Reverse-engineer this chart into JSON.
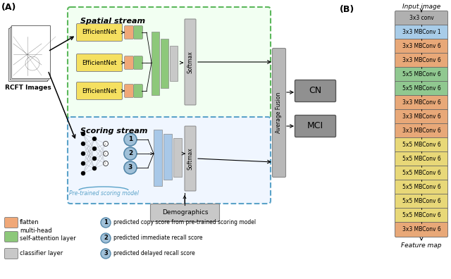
{
  "title_A": "(A)",
  "title_B": "(B)",
  "spatial_stream_label": "Spatial stream",
  "scoring_stream_label": "Scoring stream",
  "rcft_label": "RCFT Images",
  "pretrained_label": "Pre-trained scoring model",
  "demographics_label": "Demographics",
  "avg_fusion_label": "Average Fusion",
  "softmax_label": "Softmax",
  "softmax2_label": "Softmax",
  "cn_label": "CN",
  "mci_label": "MCI",
  "input_image_label": "Input image",
  "feature_map_label": "Feature map",
  "efficientnet_color": "#f5e060",
  "flatten_color": "#f0a878",
  "attention_color": "#8dc87a",
  "classifier_color": "#c8c8c8",
  "blue_block_color": "#a8c8e8",
  "gray_block_color": "#b8b8b8",
  "light_blue_circle": "#a0c0d8",
  "spatial_box_edge": "#5cb85c",
  "scoring_box_edge": "#5ba3c9",
  "cn_mci_color": "#909090",
  "avg_fusion_color": "#b8b8b8",
  "b_blocks": [
    {
      "label": "3x3 conv",
      "color": "#b0b0b0"
    },
    {
      "label": "3x3 MBConv 1",
      "color": "#a8cce8"
    },
    {
      "label": "3x3 MBConv 6",
      "color": "#e8a878"
    },
    {
      "label": "3x3 MBConv 6",
      "color": "#e8a878"
    },
    {
      "label": "5x5 MBConv 6",
      "color": "#90c890"
    },
    {
      "label": "5x5 MBConv 6",
      "color": "#90c890"
    },
    {
      "label": "3x3 MBConv 6",
      "color": "#e8a878"
    },
    {
      "label": "3x3 MBConv 6",
      "color": "#e8a878"
    },
    {
      "label": "3x3 MBConv 6",
      "color": "#e8a878"
    },
    {
      "label": "5x5 MBConv 6",
      "color": "#e8d878"
    },
    {
      "label": "5x5 MBConv 6",
      "color": "#e8d878"
    },
    {
      "label": "5x5 MBConv 6",
      "color": "#e8d878"
    },
    {
      "label": "5x5 MBConv 6",
      "color": "#e8d878"
    },
    {
      "label": "5x5 MBConv 6",
      "color": "#e8d878"
    },
    {
      "label": "5x5 MBConv 6",
      "color": "#e8d878"
    },
    {
      "label": "3x3 MBConv 6",
      "color": "#e8a878"
    }
  ]
}
